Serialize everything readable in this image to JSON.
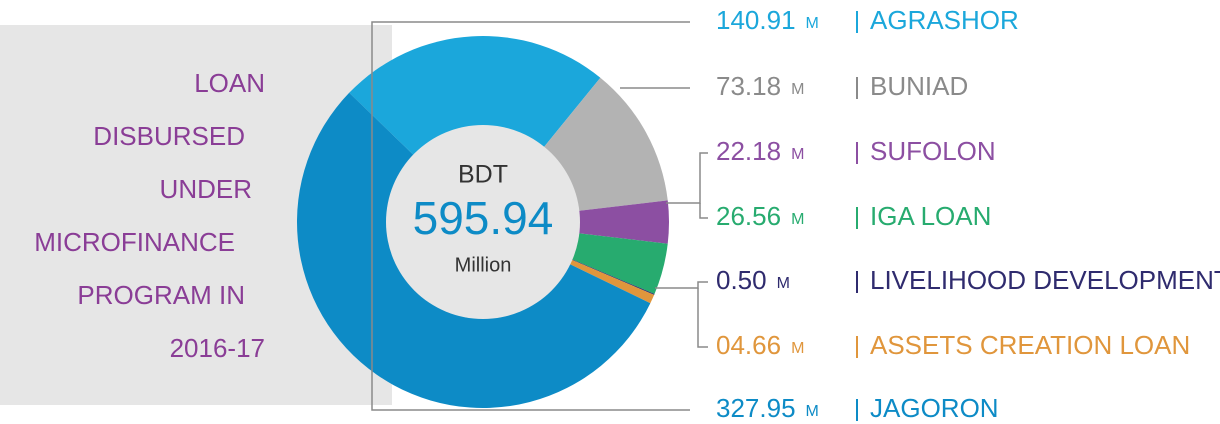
{
  "chart_data": {
    "type": "pie",
    "title": [
      "LOAN",
      "DISBURSED",
      "UNDER",
      "MICROFINANCE",
      "PROGRAM IN",
      "2016-17"
    ],
    "center": {
      "top": "BDT",
      "value": "595.94",
      "bottom": "Million"
    },
    "unit": "M",
    "categories": [
      "AGRASHOR",
      "BUNIAD",
      "SUFOLON",
      "IGA LOAN",
      "LIVELIHOOD DEVELOPMENT",
      "ASSETS CREATION LOAN",
      "JAGORON"
    ],
    "values": [
      140.91,
      73.18,
      22.18,
      26.56,
      0.5,
      4.66,
      327.95
    ],
    "value_labels": [
      "140.91",
      "73.18",
      "22.18",
      "26.56",
      "0.50",
      "04.66",
      "327.95"
    ],
    "colors": [
      "#1ba7db",
      "#b3b3b3",
      "#8c4fa2",
      "#27ab6f",
      "#2f2b6e",
      "#e0963c",
      "#0d8bc6"
    ],
    "label_colors": [
      "#1ba7db",
      "#8a8a8a",
      "#8c4fa2",
      "#27ab6f",
      "#2f2b6e",
      "#e0963c",
      "#0d8bc6"
    ]
  }
}
